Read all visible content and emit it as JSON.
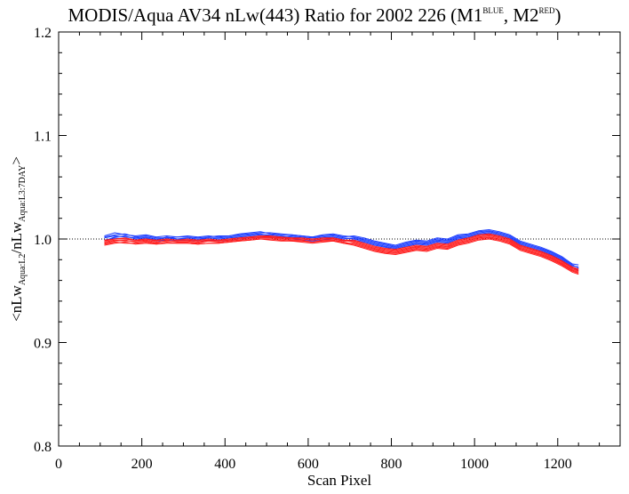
{
  "chart_data": {
    "type": "line",
    "title": {
      "main": "MODIS/Aqua AV34 nLw(443) Ratio for 2002 226 (M1",
      "sup1": "BLUE",
      "mid": ", M2",
      "sup2": "RED",
      "end": ")"
    },
    "xlabel": "Scan Pixel",
    "ylabel": {
      "part1": "<nLw",
      "sub1": "Aqua:L2",
      "part2": "/nLw",
      "sub2": "Aqua:L3:7DAY",
      "part3": ">"
    },
    "xlim": [
      0,
      1350
    ],
    "ylim": [
      0.8,
      1.2
    ],
    "x_ticks": [
      "0",
      "200",
      "400",
      "600",
      "800",
      "1000",
      "1200"
    ],
    "y_ticks": [
      "0.8",
      "0.9",
      "1.0",
      "1.1",
      "1.2"
    ],
    "reference_line": 1.0,
    "colors": {
      "M1": "#1a3cff",
      "M2": "#ff1a1a",
      "reference": "#000000"
    },
    "x": [
      110,
      135,
      160,
      185,
      210,
      235,
      260,
      285,
      310,
      335,
      360,
      385,
      410,
      435,
      460,
      485,
      510,
      535,
      560,
      585,
      610,
      635,
      660,
      685,
      710,
      735,
      760,
      785,
      810,
      835,
      860,
      885,
      910,
      935,
      960,
      985,
      1010,
      1035,
      1060,
      1085,
      1110,
      1135,
      1160,
      1185,
      1210,
      1235,
      1250
    ],
    "series": [
      {
        "group": "M1",
        "values": [
          1.003,
          1.006,
          1.004,
          1.003,
          1.004,
          1.002,
          1.003,
          1.002,
          1.003,
          1.002,
          1.003,
          1.002,
          1.003,
          1.004,
          1.005,
          1.006,
          1.006,
          1.005,
          1.004,
          1.003,
          1.002,
          1.003,
          1.004,
          1.002,
          1.003,
          1.001,
          0.998,
          0.996,
          0.994,
          0.997,
          0.999,
          0.998,
          1.001,
          1.0,
          1.004,
          1.005,
          1.008,
          1.009,
          1.007,
          1.004,
          0.998,
          0.995,
          0.992,
          0.988,
          0.983,
          0.976,
          0.975
        ]
      },
      {
        "group": "M1",
        "values": [
          1.001,
          1.003,
          1.002,
          1.001,
          1.002,
          1.0,
          1.001,
          1.0,
          1.001,
          1.0,
          1.001,
          1.0,
          1.001,
          1.002,
          1.003,
          1.004,
          1.004,
          1.003,
          1.002,
          1.001,
          1.0,
          1.001,
          1.002,
          1.0,
          1.001,
          0.999,
          0.996,
          0.994,
          0.992,
          0.995,
          0.997,
          0.996,
          0.999,
          0.998,
          1.002,
          1.003,
          1.006,
          1.007,
          1.005,
          1.002,
          0.996,
          0.993,
          0.99,
          0.986,
          0.981,
          0.974,
          0.973
        ]
      },
      {
        "group": "M1",
        "values": [
          0.999,
          1.001,
          1.0,
          0.999,
          1.0,
          0.998,
          0.999,
          0.998,
          0.999,
          0.998,
          0.999,
          0.998,
          0.999,
          1.0,
          1.001,
          1.002,
          1.002,
          1.001,
          1.0,
          0.999,
          0.998,
          0.999,
          1.0,
          0.998,
          0.999,
          0.997,
          0.994,
          0.992,
          0.99,
          0.993,
          0.995,
          0.994,
          0.997,
          0.996,
          1.0,
          1.001,
          1.004,
          1.005,
          1.003,
          1.0,
          0.994,
          0.991,
          0.988,
          0.984,
          0.979,
          0.972,
          0.971
        ]
      },
      {
        "group": "M1",
        "values": [
          0.998,
          1.002,
          1.003,
          1.0,
          1.001,
          0.999,
          1.002,
          1.0,
          1.0,
          0.999,
          1.001,
          1.001,
          1.002,
          1.003,
          1.004,
          1.005,
          1.003,
          1.002,
          1.003,
          1.002,
          1.001,
          1.002,
          1.003,
          1.001,
          1.0,
          0.998,
          0.995,
          0.993,
          0.991,
          0.994,
          0.996,
          0.995,
          0.998,
          0.997,
          1.001,
          1.002,
          1.005,
          1.006,
          1.004,
          1.001,
          0.995,
          0.992,
          0.989,
          0.985,
          0.98,
          0.973,
          0.969
        ]
      },
      {
        "group": "M1",
        "values": [
          1.002,
          1.004,
          1.005,
          1.002,
          1.003,
          1.001,
          1.001,
          1.002,
          1.002,
          1.001,
          1.002,
          1.003,
          1.003,
          1.005,
          1.006,
          1.007,
          1.005,
          1.004,
          1.004,
          1.003,
          1.002,
          1.004,
          1.005,
          1.003,
          1.002,
          1.0,
          0.997,
          0.995,
          0.993,
          0.996,
          0.998,
          0.997,
          1.0,
          0.999,
          1.003,
          1.004,
          1.007,
          1.008,
          1.006,
          1.003,
          0.997,
          0.994,
          0.991,
          0.987,
          0.982,
          0.975,
          0.972
        ]
      },
      {
        "group": "M2",
        "values": [
          0.997,
          0.999,
          0.998,
          0.998,
          0.999,
          0.997,
          0.998,
          0.998,
          0.998,
          0.997,
          0.998,
          0.998,
          0.999,
          1.0,
          1.001,
          1.002,
          1.002,
          1.001,
          1.0,
          1.0,
          0.999,
          1.0,
          1.0,
          0.998,
          0.998,
          0.995,
          0.992,
          0.99,
          0.989,
          0.991,
          0.993,
          0.992,
          0.995,
          0.994,
          0.998,
          1.0,
          1.003,
          1.004,
          1.002,
          0.999,
          0.993,
          0.99,
          0.987,
          0.983,
          0.978,
          0.972,
          0.97
        ]
      },
      {
        "group": "M2",
        "values": [
          0.995,
          0.997,
          0.996,
          0.996,
          0.997,
          0.995,
          0.996,
          0.996,
          0.996,
          0.995,
          0.996,
          0.996,
          0.997,
          0.998,
          0.999,
          1.0,
          1.0,
          0.999,
          0.998,
          0.998,
          0.997,
          0.998,
          0.998,
          0.996,
          0.996,
          0.993,
          0.99,
          0.988,
          0.987,
          0.989,
          0.991,
          0.99,
          0.993,
          0.992,
          0.996,
          0.998,
          1.001,
          1.002,
          1.0,
          0.997,
          0.991,
          0.988,
          0.985,
          0.981,
          0.976,
          0.97,
          0.968
        ]
      },
      {
        "group": "M2",
        "values": [
          0.999,
          1.0,
          1.0,
          0.999,
          1.0,
          0.999,
          1.0,
          0.999,
          1.0,
          0.999,
          1.0,
          0.999,
          1.0,
          1.001,
          1.002,
          1.003,
          1.003,
          1.002,
          1.001,
          1.001,
          1.0,
          1.001,
          1.001,
          0.999,
          0.999,
          0.996,
          0.993,
          0.991,
          0.99,
          0.992,
          0.994,
          0.993,
          0.996,
          0.995,
          0.999,
          1.001,
          1.004,
          1.005,
          1.003,
          1.0,
          0.994,
          0.991,
          0.988,
          0.984,
          0.979,
          0.973,
          0.971
        ]
      },
      {
        "group": "M2",
        "values": [
          0.996,
          0.998,
          0.999,
          0.997,
          0.998,
          0.996,
          0.999,
          0.997,
          0.997,
          0.996,
          0.998,
          0.997,
          0.998,
          0.999,
          1.0,
          1.001,
          1.001,
          1.0,
          0.999,
          0.999,
          0.997,
          0.999,
          0.999,
          0.997,
          0.995,
          0.992,
          0.989,
          0.987,
          0.986,
          0.988,
          0.99,
          0.989,
          0.992,
          0.991,
          0.995,
          0.997,
          1.0,
          1.001,
          0.999,
          0.996,
          0.99,
          0.987,
          0.984,
          0.98,
          0.975,
          0.969,
          0.967
        ]
      },
      {
        "group": "M2",
        "values": [
          0.998,
          1.0,
          1.001,
          0.999,
          1.0,
          0.998,
          1.0,
          0.999,
          0.999,
          0.998,
          0.999,
          0.999,
          1.0,
          1.001,
          1.002,
          1.003,
          1.002,
          1.001,
          1.001,
          1.0,
          0.999,
          1.0,
          1.001,
          0.999,
          0.997,
          0.994,
          0.991,
          0.989,
          0.988,
          0.99,
          0.992,
          0.991,
          0.994,
          0.993,
          0.997,
          0.999,
          1.002,
          1.003,
          1.001,
          0.998,
          0.992,
          0.989,
          0.986,
          0.982,
          0.977,
          0.971,
          0.969
        ]
      },
      {
        "group": "M2",
        "values": [
          0.994,
          0.996,
          0.997,
          0.995,
          0.996,
          0.995,
          0.997,
          0.996,
          0.996,
          0.995,
          0.996,
          0.996,
          0.997,
          0.998,
          0.999,
          1.0,
          0.999,
          0.998,
          0.998,
          0.997,
          0.996,
          0.997,
          0.998,
          0.996,
          0.994,
          0.991,
          0.988,
          0.986,
          0.985,
          0.987,
          0.989,
          0.988,
          0.991,
          0.99,
          0.994,
          0.996,
          0.999,
          1.0,
          0.998,
          0.995,
          0.989,
          0.986,
          0.983,
          0.979,
          0.974,
          0.968,
          0.966
        ]
      }
    ]
  }
}
